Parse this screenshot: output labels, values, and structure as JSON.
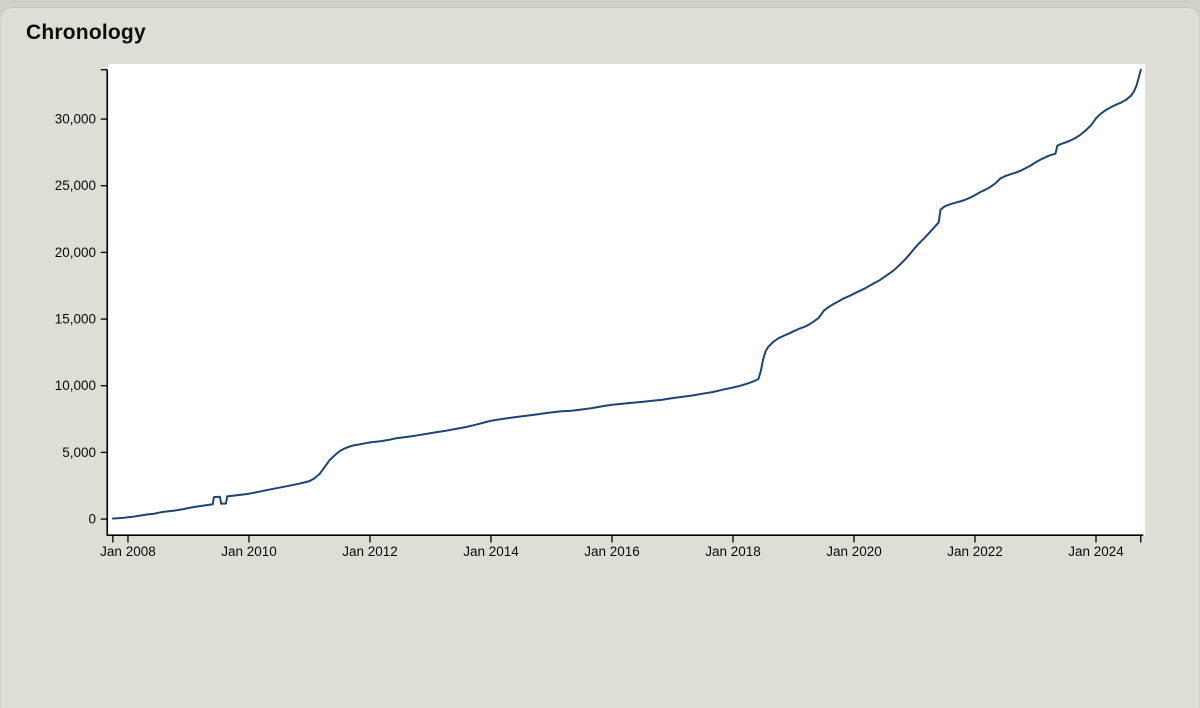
{
  "page": {
    "title": "Chronology"
  },
  "chart_data": {
    "type": "line",
    "title": "Chronology",
    "xlabel": "",
    "ylabel": "",
    "grid": false,
    "legend": "none",
    "plot_bg": "#ffffff",
    "card_bg": "#dfded6",
    "outer_bg": "#d2d1c8",
    "axis_color": "#000000",
    "x_domain_years": [
      2007.67,
      2024.81
    ],
    "y_domain": [
      -1270,
      34130
    ],
    "x_ticks": [
      {
        "year": 2008,
        "label": "Jan 2008"
      },
      {
        "year": 2010,
        "label": "Jan 2010"
      },
      {
        "year": 2012,
        "label": "Jan 2012"
      },
      {
        "year": 2014,
        "label": "Jan 2014"
      },
      {
        "year": 2016,
        "label": "Jan 2016"
      },
      {
        "year": 2018,
        "label": "Jan 2018"
      },
      {
        "year": 2020,
        "label": "Jan 2020"
      },
      {
        "year": 2022,
        "label": "Jan 2022"
      },
      {
        "year": 2024,
        "label": "Jan 2024"
      }
    ],
    "y_ticks": [
      {
        "value": 0,
        "label": "0"
      },
      {
        "value": 5000,
        "label": "5,000"
      },
      {
        "value": 10000,
        "label": "10,000"
      },
      {
        "value": 15000,
        "label": "15,000"
      },
      {
        "value": 20000,
        "label": "20,000"
      },
      {
        "value": 25000,
        "label": "25,000"
      },
      {
        "value": 30000,
        "label": "30,000"
      }
    ],
    "series": [
      {
        "name": "cumulative-entries",
        "color": "#1c4577",
        "points": [
          [
            2007.75,
            40
          ],
          [
            2007.83,
            60
          ],
          [
            2007.92,
            90
          ],
          [
            2008.0,
            130
          ],
          [
            2008.08,
            170
          ],
          [
            2008.17,
            240
          ],
          [
            2008.25,
            300
          ],
          [
            2008.33,
            350
          ],
          [
            2008.42,
            390
          ],
          [
            2008.5,
            470
          ],
          [
            2008.58,
            540
          ],
          [
            2008.67,
            580
          ],
          [
            2008.75,
            620
          ],
          [
            2008.83,
            680
          ],
          [
            2008.92,
            750
          ],
          [
            2009.0,
            830
          ],
          [
            2009.08,
            900
          ],
          [
            2009.17,
            960
          ],
          [
            2009.25,
            1010
          ],
          [
            2009.33,
            1060
          ],
          [
            2009.4,
            1100
          ],
          [
            2009.42,
            1650
          ],
          [
            2009.52,
            1670
          ],
          [
            2009.54,
            1150
          ],
          [
            2009.62,
            1170
          ],
          [
            2009.64,
            1700
          ],
          [
            2009.75,
            1760
          ],
          [
            2009.87,
            1830
          ],
          [
            2010.0,
            1900
          ],
          [
            2010.17,
            2050
          ],
          [
            2010.33,
            2200
          ],
          [
            2010.5,
            2350
          ],
          [
            2010.67,
            2500
          ],
          [
            2010.83,
            2650
          ],
          [
            2010.92,
            2750
          ],
          [
            2011.0,
            2850
          ],
          [
            2011.04,
            2950
          ],
          [
            2011.08,
            3050
          ],
          [
            2011.17,
            3400
          ],
          [
            2011.25,
            3900
          ],
          [
            2011.33,
            4400
          ],
          [
            2011.42,
            4800
          ],
          [
            2011.5,
            5100
          ],
          [
            2011.58,
            5300
          ],
          [
            2011.67,
            5450
          ],
          [
            2011.75,
            5550
          ],
          [
            2011.83,
            5600
          ],
          [
            2011.92,
            5680
          ],
          [
            2012.0,
            5750
          ],
          [
            2012.17,
            5830
          ],
          [
            2012.33,
            5950
          ],
          [
            2012.42,
            6050
          ],
          [
            2012.58,
            6150
          ],
          [
            2012.75,
            6250
          ],
          [
            2012.92,
            6380
          ],
          [
            2013.08,
            6500
          ],
          [
            2013.25,
            6620
          ],
          [
            2013.42,
            6760
          ],
          [
            2013.58,
            6900
          ],
          [
            2013.75,
            7080
          ],
          [
            2013.92,
            7280
          ],
          [
            2014.0,
            7380
          ],
          [
            2014.17,
            7500
          ],
          [
            2014.33,
            7600
          ],
          [
            2014.5,
            7700
          ],
          [
            2014.67,
            7800
          ],
          [
            2014.83,
            7900
          ],
          [
            2015.0,
            8000
          ],
          [
            2015.17,
            8080
          ],
          [
            2015.33,
            8130
          ],
          [
            2015.5,
            8220
          ],
          [
            2015.67,
            8320
          ],
          [
            2015.83,
            8450
          ],
          [
            2016.0,
            8570
          ],
          [
            2016.17,
            8650
          ],
          [
            2016.33,
            8720
          ],
          [
            2016.5,
            8790
          ],
          [
            2016.67,
            8870
          ],
          [
            2016.83,
            8950
          ],
          [
            2017.0,
            9070
          ],
          [
            2017.17,
            9170
          ],
          [
            2017.33,
            9270
          ],
          [
            2017.5,
            9400
          ],
          [
            2017.67,
            9530
          ],
          [
            2017.83,
            9700
          ],
          [
            2018.0,
            9870
          ],
          [
            2018.08,
            9950
          ],
          [
            2018.17,
            10070
          ],
          [
            2018.25,
            10180
          ],
          [
            2018.33,
            10310
          ],
          [
            2018.42,
            10500
          ],
          [
            2018.46,
            11100
          ],
          [
            2018.5,
            12000
          ],
          [
            2018.54,
            12600
          ],
          [
            2018.58,
            12900
          ],
          [
            2018.67,
            13300
          ],
          [
            2018.75,
            13560
          ],
          [
            2018.83,
            13730
          ],
          [
            2018.92,
            13900
          ],
          [
            2019.0,
            14080
          ],
          [
            2019.08,
            14250
          ],
          [
            2019.17,
            14400
          ],
          [
            2019.25,
            14570
          ],
          [
            2019.33,
            14800
          ],
          [
            2019.42,
            15100
          ],
          [
            2019.5,
            15620
          ],
          [
            2019.58,
            15900
          ],
          [
            2019.67,
            16150
          ],
          [
            2019.75,
            16350
          ],
          [
            2019.83,
            16550
          ],
          [
            2019.92,
            16720
          ],
          [
            2020.0,
            16900
          ],
          [
            2020.08,
            17080
          ],
          [
            2020.17,
            17280
          ],
          [
            2020.25,
            17480
          ],
          [
            2020.33,
            17680
          ],
          [
            2020.42,
            17900
          ],
          [
            2020.5,
            18150
          ],
          [
            2020.58,
            18400
          ],
          [
            2020.67,
            18700
          ],
          [
            2020.75,
            19050
          ],
          [
            2020.83,
            19400
          ],
          [
            2020.92,
            19850
          ],
          [
            2021.0,
            20300
          ],
          [
            2021.08,
            20700
          ],
          [
            2021.17,
            21100
          ],
          [
            2021.25,
            21500
          ],
          [
            2021.33,
            21900
          ],
          [
            2021.4,
            22250
          ],
          [
            2021.43,
            23200
          ],
          [
            2021.5,
            23450
          ],
          [
            2021.58,
            23600
          ],
          [
            2021.67,
            23720
          ],
          [
            2021.75,
            23820
          ],
          [
            2021.83,
            23930
          ],
          [
            2021.92,
            24100
          ],
          [
            2022.0,
            24300
          ],
          [
            2022.08,
            24500
          ],
          [
            2022.17,
            24700
          ],
          [
            2022.25,
            24900
          ],
          [
            2022.33,
            25150
          ],
          [
            2022.42,
            25550
          ],
          [
            2022.5,
            25720
          ],
          [
            2022.58,
            25850
          ],
          [
            2022.67,
            25980
          ],
          [
            2022.75,
            26120
          ],
          [
            2022.83,
            26300
          ],
          [
            2022.92,
            26520
          ],
          [
            2023.0,
            26750
          ],
          [
            2023.08,
            26950
          ],
          [
            2023.17,
            27150
          ],
          [
            2023.25,
            27300
          ],
          [
            2023.33,
            27400
          ],
          [
            2023.36,
            28000
          ],
          [
            2023.42,
            28120
          ],
          [
            2023.5,
            28250
          ],
          [
            2023.58,
            28400
          ],
          [
            2023.67,
            28600
          ],
          [
            2023.75,
            28850
          ],
          [
            2023.83,
            29150
          ],
          [
            2023.92,
            29550
          ],
          [
            2024.0,
            30050
          ],
          [
            2024.08,
            30400
          ],
          [
            2024.17,
            30700
          ],
          [
            2024.25,
            30900
          ],
          [
            2024.33,
            31080
          ],
          [
            2024.42,
            31250
          ],
          [
            2024.5,
            31450
          ],
          [
            2024.58,
            31750
          ],
          [
            2024.63,
            32100
          ],
          [
            2024.67,
            32500
          ],
          [
            2024.7,
            33000
          ],
          [
            2024.72,
            33350
          ],
          [
            2024.74,
            33700
          ]
        ]
      }
    ]
  }
}
